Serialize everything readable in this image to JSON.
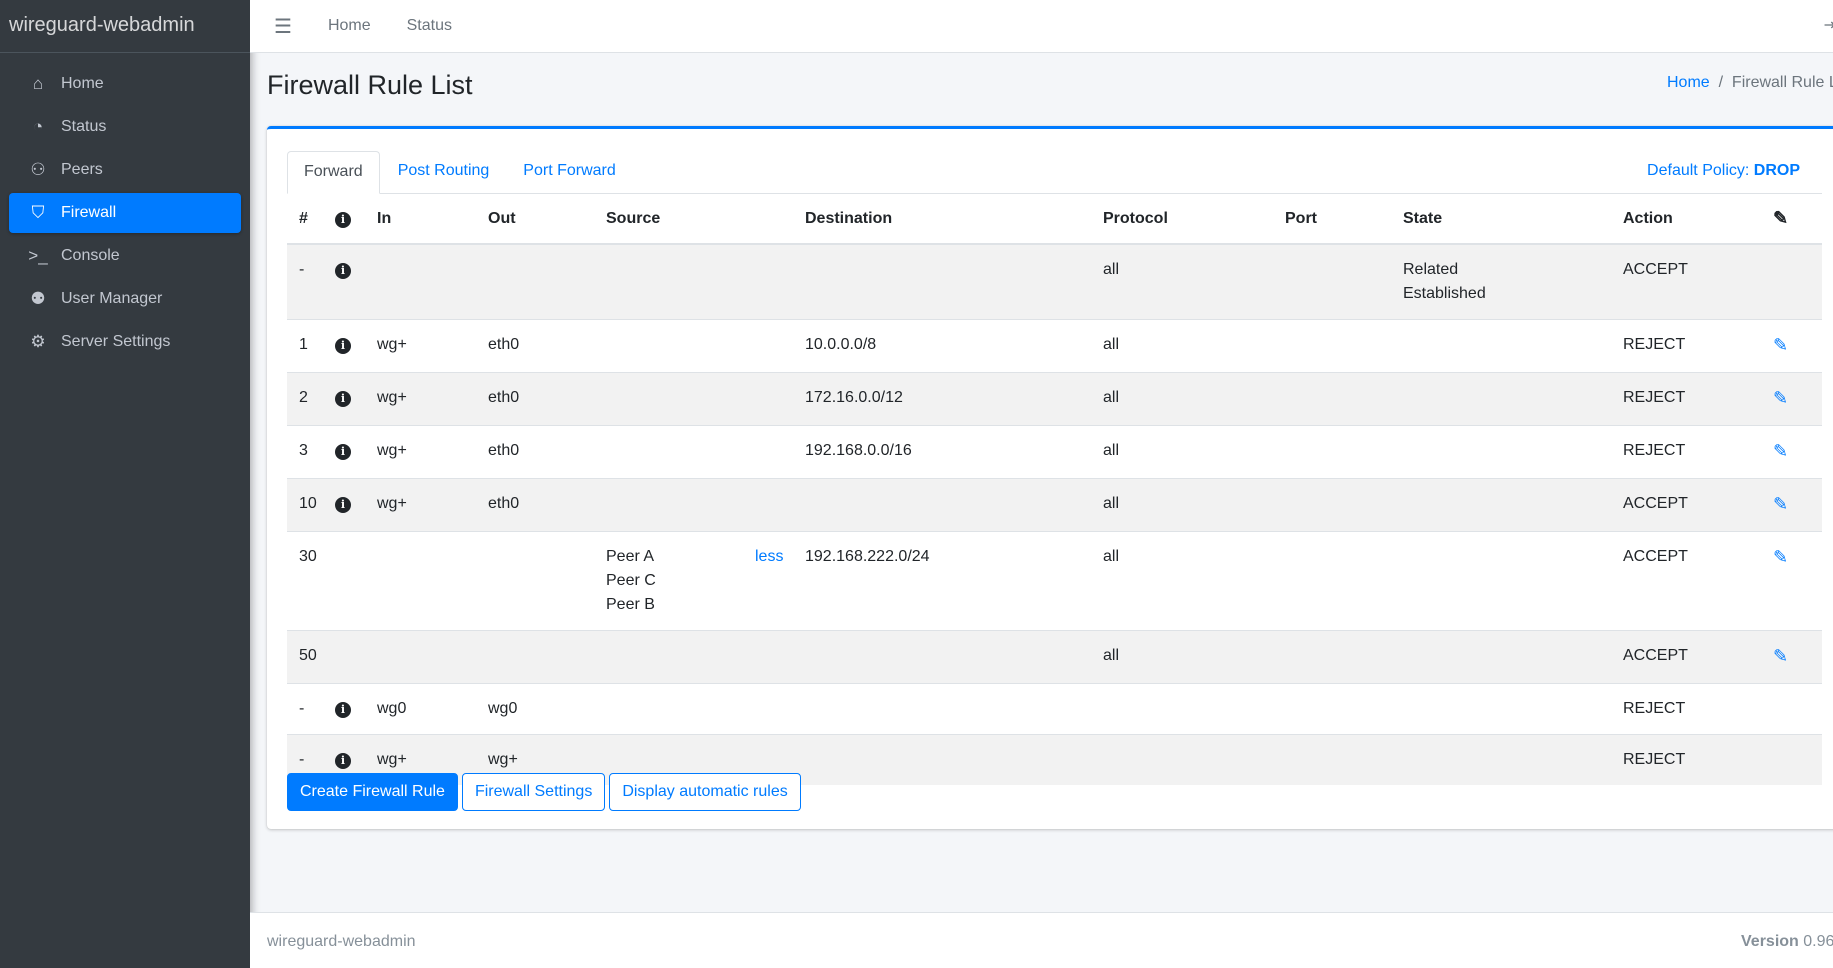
{
  "app": {
    "brand": "wireguard-webadmin"
  },
  "sidebar": {
    "items": [
      {
        "label": "Home",
        "icon": "home-icon",
        "glyph": "⌂"
      },
      {
        "label": "Status",
        "icon": "gauge-icon",
        "glyph": "◔"
      },
      {
        "label": "Peers",
        "icon": "users-cog-icon",
        "glyph": "⚇"
      },
      {
        "label": "Firewall",
        "icon": "shield-icon",
        "glyph": "⛉",
        "active": true
      },
      {
        "label": "Console",
        "icon": "terminal-icon",
        "glyph": ">_"
      },
      {
        "label": "User Manager",
        "icon": "users-icon",
        "glyph": "⚉"
      },
      {
        "label": "Server Settings",
        "icon": "cogs-icon",
        "glyph": "⚙"
      }
    ]
  },
  "topbar": {
    "links": [
      "Home",
      "Status"
    ]
  },
  "page": {
    "title": "Firewall Rule List",
    "breadcrumb": [
      "Home",
      "Firewall Rule List"
    ]
  },
  "tabs": [
    "Forward",
    "Post Routing",
    "Port Forward"
  ],
  "policy": {
    "label": "Default Policy:",
    "value": "DROP"
  },
  "table": {
    "headers": [
      "#",
      "",
      "In",
      "Out",
      "Source",
      "",
      "Destination",
      "Protocol",
      "Port",
      "State",
      "Action",
      ""
    ],
    "rows": [
      {
        "n": "-",
        "info": true,
        "in": "",
        "out": "",
        "source": [],
        "less": "",
        "dest": "",
        "proto": "all",
        "port": "",
        "state": [
          "Related",
          "Established"
        ],
        "action": "ACCEPT",
        "edit": false
      },
      {
        "n": "1",
        "info": true,
        "in": "wg+",
        "out": "eth0",
        "source": [],
        "less": "",
        "dest": "10.0.0.0/8",
        "proto": "all",
        "port": "",
        "state": [],
        "action": "REJECT",
        "edit": true
      },
      {
        "n": "2",
        "info": true,
        "in": "wg+",
        "out": "eth0",
        "source": [],
        "less": "",
        "dest": "172.16.0.0/12",
        "proto": "all",
        "port": "",
        "state": [],
        "action": "REJECT",
        "edit": true
      },
      {
        "n": "3",
        "info": true,
        "in": "wg+",
        "out": "eth0",
        "source": [],
        "less": "",
        "dest": "192.168.0.0/16",
        "proto": "all",
        "port": "",
        "state": [],
        "action": "REJECT",
        "edit": true
      },
      {
        "n": "10",
        "info": true,
        "in": "wg+",
        "out": "eth0",
        "source": [],
        "less": "",
        "dest": "",
        "proto": "all",
        "port": "",
        "state": [],
        "action": "ACCEPT",
        "edit": true
      },
      {
        "n": "30",
        "info": false,
        "in": "",
        "out": "",
        "source": [
          "Peer A",
          "Peer C",
          "Peer B"
        ],
        "less": "less",
        "dest": "192.168.222.0/24",
        "proto": "all",
        "port": "",
        "state": [],
        "action": "ACCEPT",
        "edit": true
      },
      {
        "n": "50",
        "info": false,
        "in": "",
        "out": "",
        "source": [],
        "less": "",
        "dest": "",
        "proto": "all",
        "port": "",
        "state": [],
        "action": "ACCEPT",
        "edit": true
      },
      {
        "n": "-",
        "info": true,
        "in": "wg0",
        "out": "wg0",
        "source": [],
        "less": "",
        "dest": "",
        "proto": "",
        "port": "",
        "state": [],
        "action": "REJECT",
        "edit": false
      },
      {
        "n": "-",
        "info": true,
        "in": "wg+",
        "out": "wg+",
        "source": [],
        "less": "",
        "dest": "",
        "proto": "",
        "port": "",
        "state": [],
        "action": "REJECT",
        "edit": false
      }
    ]
  },
  "buttons": {
    "create": "Create Firewall Rule",
    "settings": "Firewall Settings",
    "auto": "Display automatic rules"
  },
  "footer": {
    "left": "wireguard-webadmin",
    "version_label": "Version",
    "version": "0.960"
  },
  "colors": {
    "accent": "#007bff",
    "sidebar": "#343a40"
  }
}
